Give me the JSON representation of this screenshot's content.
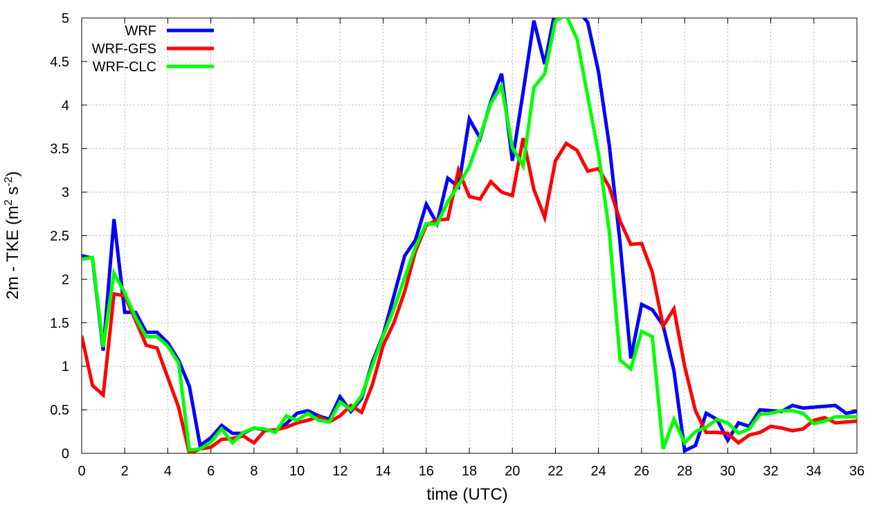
{
  "chart_data": {
    "type": "line",
    "xlabel": "time (UTC)",
    "ylabel": {
      "main": "2m - TKE (m",
      "sup1": "2",
      "mid": " s",
      "sup2": "-2",
      "end": ")"
    },
    "xlim": [
      0,
      36
    ],
    "ylim": [
      0,
      5
    ],
    "xticks": [
      0,
      2,
      4,
      6,
      8,
      10,
      12,
      14,
      16,
      18,
      20,
      22,
      24,
      26,
      28,
      30,
      32,
      34,
      36
    ],
    "yticks": [
      0,
      0.5,
      1,
      1.5,
      2,
      2.5,
      3,
      3.5,
      4,
      4.5,
      5
    ],
    "grid": true,
    "legend_position": "top-left",
    "x": [
      0,
      0.5,
      1,
      1.5,
      2,
      2.5,
      3,
      3.5,
      4,
      4.5,
      5,
      5.5,
      6,
      6.5,
      7,
      7.5,
      8,
      8.5,
      9,
      9.5,
      10,
      10.5,
      11,
      11.5,
      12,
      12.5,
      13,
      13.5,
      14,
      14.5,
      15,
      15.5,
      16,
      16.5,
      17,
      17.5,
      18,
      18.5,
      19,
      19.5,
      20,
      20.5,
      21,
      21.5,
      22,
      22.5,
      23,
      23.5,
      24,
      24.5,
      25,
      25.5,
      26,
      26.5,
      27,
      27.5,
      28,
      28.5,
      29,
      29.5,
      30,
      30.5,
      31,
      31.5,
      32,
      32.5,
      33,
      33.5,
      34,
      34.5,
      35,
      35.5,
      36
    ],
    "series": [
      {
        "name": "WRF",
        "color": "#0000ff",
        "values": [
          2.27,
          2.24,
          1.18,
          2.69,
          1.62,
          1.62,
          1.39,
          1.39,
          1.27,
          1.07,
          0.77,
          0.09,
          0.18,
          0.32,
          0.23,
          0.23,
          0.29,
          0.27,
          0.26,
          0.34,
          0.46,
          0.49,
          0.43,
          0.39,
          0.65,
          0.48,
          0.63,
          1.05,
          1.36,
          1.81,
          2.27,
          2.45,
          2.86,
          2.64,
          3.16,
          3.06,
          3.84,
          3.62,
          4.04,
          4.36,
          3.36,
          4.15,
          4.97,
          4.47,
          5.1,
          5.1,
          5.1,
          4.95,
          4.38,
          3.54,
          2.42,
          1.09,
          1.71,
          1.65,
          1.47,
          0.95,
          0.03,
          0.09,
          0.46,
          0.39,
          0.15,
          0.35,
          0.31,
          0.5,
          0.49,
          0.48,
          0.55,
          0.52,
          0.53,
          0.54,
          0.55,
          0.46,
          0.48
        ]
      },
      {
        "name": "WRF-GFS",
        "color": "#ff0000",
        "values": [
          1.35,
          0.78,
          0.67,
          1.83,
          1.81,
          1.53,
          1.24,
          1.21,
          0.87,
          0.53,
          0.0,
          0.05,
          0.07,
          0.16,
          0.17,
          0.2,
          0.12,
          0.26,
          0.27,
          0.3,
          0.35,
          0.38,
          0.42,
          0.36,
          0.43,
          0.55,
          0.47,
          0.79,
          1.24,
          1.5,
          1.86,
          2.32,
          2.62,
          2.68,
          2.69,
          3.25,
          2.95,
          2.92,
          3.12,
          3.0,
          2.96,
          3.62,
          3.03,
          2.71,
          3.36,
          3.56,
          3.48,
          3.24,
          3.27,
          3.06,
          2.67,
          2.4,
          2.41,
          2.08,
          1.46,
          1.66,
          1.0,
          0.49,
          0.24,
          0.24,
          0.23,
          0.12,
          0.21,
          0.24,
          0.31,
          0.29,
          0.26,
          0.28,
          0.38,
          0.41,
          0.35,
          0.36,
          0.37
        ]
      },
      {
        "name": "WRF-CLC",
        "color": "#00ff00",
        "values": [
          2.23,
          2.25,
          1.22,
          2.07,
          1.84,
          1.56,
          1.34,
          1.34,
          1.23,
          1.04,
          0.04,
          0.05,
          0.13,
          0.28,
          0.12,
          0.24,
          0.29,
          0.28,
          0.24,
          0.43,
          0.38,
          0.46,
          0.38,
          0.36,
          0.59,
          0.5,
          0.66,
          1.01,
          1.35,
          1.66,
          2.02,
          2.37,
          2.64,
          2.63,
          2.89,
          3.08,
          3.29,
          3.64,
          4.02,
          4.22,
          3.51,
          3.3,
          4.2,
          4.36,
          4.97,
          5.03,
          4.76,
          4.1,
          3.44,
          2.55,
          1.07,
          0.97,
          1.4,
          1.34,
          0.05,
          0.39,
          0.12,
          0.25,
          0.3,
          0.39,
          0.35,
          0.23,
          0.28,
          0.45,
          0.46,
          0.49,
          0.49,
          0.46,
          0.34,
          0.37,
          0.42,
          0.42,
          0.42
        ]
      }
    ]
  }
}
